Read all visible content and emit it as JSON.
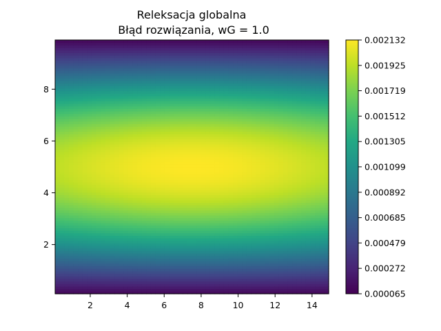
{
  "chart_data": {
    "type": "heatmap",
    "title": "Releksacja globalna",
    "subtitle": "Błąd rozwiązania, wG = 1.0",
    "xlabel": "",
    "ylabel": "",
    "xlim": [
      0.1,
      14.9
    ],
    "ylim": [
      0.1,
      9.9
    ],
    "x_ticks": [
      "2",
      "4",
      "6",
      "8",
      "10",
      "12",
      "14"
    ],
    "y_ticks": [
      "2",
      "4",
      "6",
      "8"
    ],
    "colormap": "viridis",
    "value_range": [
      6.5e-05,
      0.002132
    ],
    "colorbar_ticks": [
      "0.000065",
      "0.000272",
      "0.000479",
      "0.000685",
      "0.000892",
      "0.001099",
      "0.001305",
      "0.001512",
      "0.001719",
      "0.001925",
      "0.002132"
    ],
    "value_pattern": "Error maximal near y=5 and x≈5, decreasing toward y=0.1 and y=9.9 (approx. sin(pi*y/10)*sin(pi*x/15) shape, weak x dependence)",
    "grid": false
  }
}
